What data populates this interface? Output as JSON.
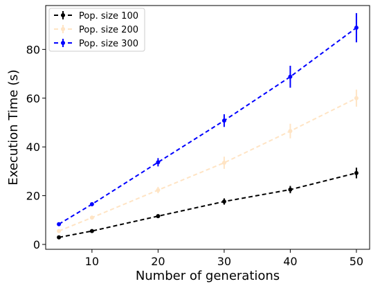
{
  "chart_data": {
    "type": "line",
    "title": "",
    "xlabel": "Number of generations",
    "ylabel": "Execution Time (s)",
    "x": [
      5,
      10,
      20,
      30,
      40,
      50
    ],
    "xlim": [
      3,
      52
    ],
    "ylim": [
      -2,
      98
    ],
    "xticks": [
      10,
      20,
      30,
      40,
      50
    ],
    "yticks": [
      0,
      20,
      40,
      60,
      80
    ],
    "grid": false,
    "legend_position": "top-left",
    "series": [
      {
        "name": "Pop. size 100",
        "color": "#000000",
        "values": [
          2.9,
          5.5,
          11.6,
          17.6,
          22.5,
          29.3
        ],
        "errors": [
          0.4,
          0.6,
          0.8,
          1.3,
          1.5,
          2.2
        ]
      },
      {
        "name": "Pop. size 200",
        "color": "#ffe4c4",
        "values": [
          5.5,
          11.0,
          22.3,
          33.5,
          46.5,
          60.0
        ],
        "errors": [
          0.5,
          0.8,
          1.3,
          2.5,
          3.0,
          3.5
        ]
      },
      {
        "name": "Pop. size 300",
        "color": "#0000ff",
        "values": [
          8.3,
          16.5,
          33.7,
          50.8,
          68.8,
          88.9
        ],
        "errors": [
          0.6,
          0.8,
          1.7,
          2.6,
          4.5,
          6.0
        ]
      }
    ]
  }
}
